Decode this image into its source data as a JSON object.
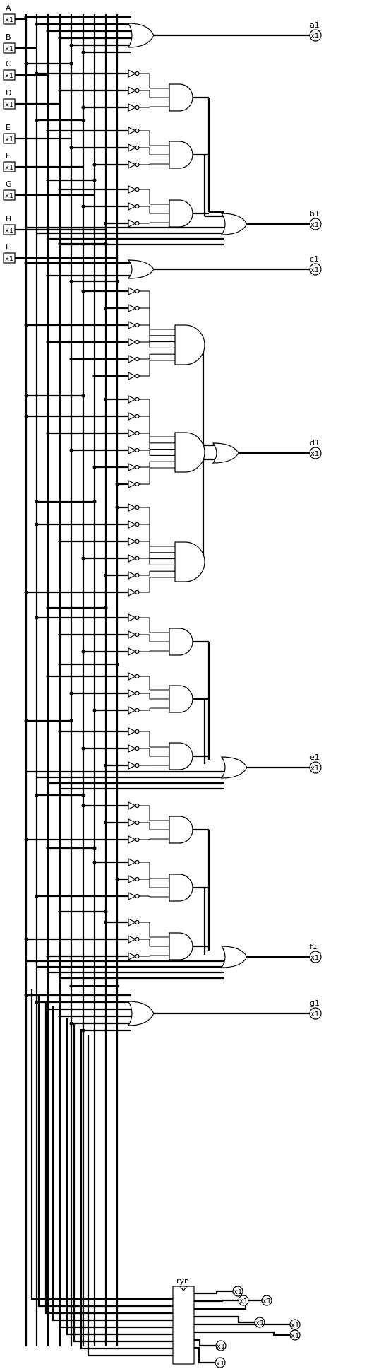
{
  "inputs": [
    "A",
    "B",
    "C",
    "D",
    "E",
    "F",
    "G",
    "H",
    "I"
  ],
  "pin_text": "x1",
  "outputs": [
    "a1",
    "b1",
    "c1",
    "d1",
    "e1",
    "f1",
    "g1"
  ],
  "component_label": "ryn",
  "bottom_pins": [
    "x1",
    "x1",
    "x1",
    "x1",
    "x1",
    "x1",
    "x1",
    "x1"
  ]
}
